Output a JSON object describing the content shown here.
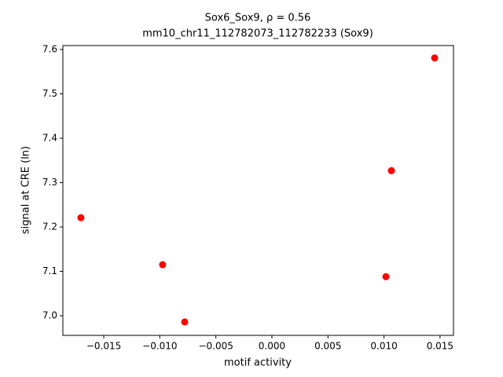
{
  "chart_data": {
    "type": "scatter",
    "title": "Sox6_Sox9, ρ = 0.56",
    "subtitle": "mm10_chr11_112782073_112782233 (Sox9)",
    "xlabel": "motif activity",
    "ylabel": "signal at CRE (ln)",
    "series": [
      {
        "name": "CRE",
        "color": "#ff0000",
        "x": [
          -0.01704,
          -0.00975,
          -0.00778,
          0.01017,
          0.01066,
          0.01452
        ],
        "values": [
          7.221,
          7.115,
          6.986,
          7.088,
          7.327,
          7.581
        ]
      }
    ],
    "xlim": [
      -0.01865,
      0.0162
    ],
    "ylim": [
      6.9558,
      7.6089
    ],
    "xticks": [
      {
        "value": -0.015,
        "label": "−0.015"
      },
      {
        "value": -0.01,
        "label": "−0.010"
      },
      {
        "value": -0.005,
        "label": "−0.005"
      },
      {
        "value": 0,
        "label": "0.000"
      },
      0.005,
      {
        "value": 0.01,
        "label": "0.010"
      },
      0.015
    ],
    "yticks": [
      {
        "value": 7,
        "label": "7.0"
      },
      7.1,
      7.2,
      7.3,
      7.4,
      7.5,
      7.6
    ],
    "grid": false
  }
}
